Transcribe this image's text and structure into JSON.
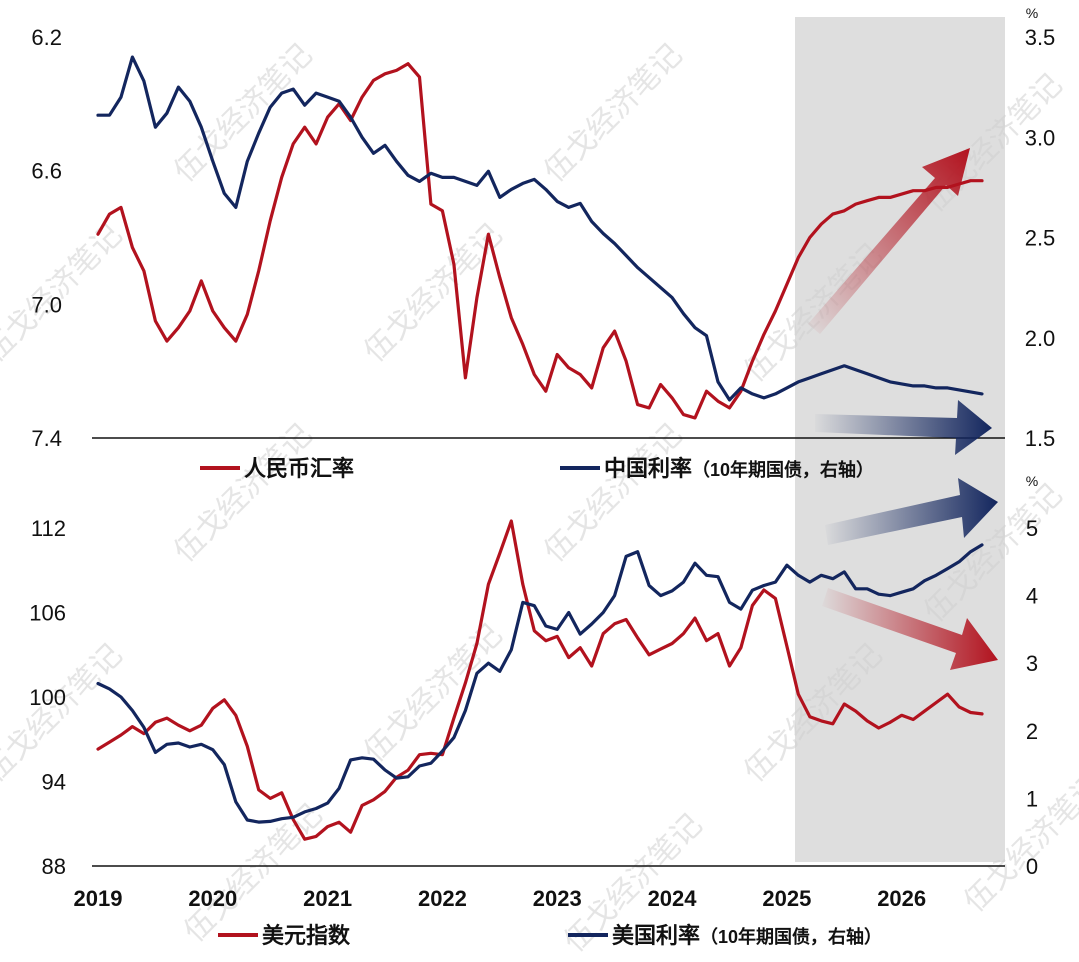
{
  "chart_data": [
    {
      "type": "line",
      "panel": "top",
      "y_left_ticks": [
        "6.2",
        "6.6",
        "7.0",
        "7.4"
      ],
      "y_left_range": [
        6.2,
        7.4
      ],
      "y_left_inverted": true,
      "y_right_ticks": [
        "3.5",
        "3.0",
        "2.5",
        "2.0",
        "1.5"
      ],
      "y_right_range": [
        1.5,
        3.5
      ],
      "y_right_unit": "%",
      "series": [
        {
          "name": "人民币汇率",
          "axis": "left",
          "color": "#b2121e",
          "x": [
            2019.0,
            2019.1,
            2019.2,
            2019.3,
            2019.4,
            2019.5,
            2019.6,
            2019.7,
            2019.8,
            2019.9,
            2020.0,
            2020.1,
            2020.2,
            2020.3,
            2020.4,
            2020.5,
            2020.6,
            2020.7,
            2020.8,
            2020.9,
            2021.0,
            2021.1,
            2021.2,
            2021.3,
            2021.4,
            2021.5,
            2021.6,
            2021.7,
            2021.8,
            2021.9,
            2022.0,
            2022.1,
            2022.2,
            2022.3,
            2022.4,
            2022.5,
            2022.6,
            2022.7,
            2022.8,
            2022.9,
            2023.0,
            2023.1,
            2023.2,
            2023.3,
            2023.4,
            2023.5,
            2023.6,
            2023.7,
            2023.8,
            2023.9,
            2024.0,
            2024.1,
            2024.2,
            2024.3,
            2024.4,
            2024.5,
            2024.6,
            2024.7,
            2024.8,
            2024.9,
            2025.0,
            2025.1,
            2025.2,
            2025.3,
            2025.4,
            2025.5,
            2025.6,
            2025.7,
            2025.8,
            2025.9,
            2026.0,
            2026.1,
            2026.2,
            2026.3,
            2026.4,
            2026.5,
            2026.6,
            2026.7
          ],
          "values": [
            6.79,
            6.73,
            6.71,
            6.83,
            6.9,
            7.05,
            7.11,
            7.07,
            7.02,
            6.93,
            7.02,
            7.07,
            7.11,
            7.03,
            6.9,
            6.75,
            6.62,
            6.52,
            6.47,
            6.52,
            6.44,
            6.4,
            6.45,
            6.38,
            6.33,
            6.31,
            6.3,
            6.28,
            6.32,
            6.7,
            6.72,
            6.88,
            7.22,
            6.98,
            6.79,
            6.92,
            7.04,
            7.12,
            7.21,
            7.26,
            7.15,
            7.19,
            7.21,
            7.25,
            7.13,
            7.08,
            7.17,
            7.3,
            7.31,
            7.24,
            7.28,
            7.33,
            7.34,
            7.26,
            7.29,
            7.31,
            7.26,
            7.17,
            7.09,
            7.02,
            6.94,
            6.86,
            6.8,
            6.76,
            6.73,
            6.72,
            6.7,
            6.69,
            6.68,
            6.68,
            6.67,
            6.66,
            6.66,
            6.65,
            6.65,
            6.64,
            6.63,
            6.63
          ]
        },
        {
          "name": "中国利率（10年期国债，右轴）",
          "axis": "right",
          "color": "#13265e",
          "x": [
            2019.0,
            2019.1,
            2019.2,
            2019.3,
            2019.4,
            2019.5,
            2019.6,
            2019.7,
            2019.8,
            2019.9,
            2020.0,
            2020.1,
            2020.2,
            2020.3,
            2020.4,
            2020.5,
            2020.6,
            2020.7,
            2020.8,
            2020.9,
            2021.0,
            2021.1,
            2021.2,
            2021.3,
            2021.4,
            2021.5,
            2021.6,
            2021.7,
            2021.8,
            2021.9,
            2022.0,
            2022.1,
            2022.2,
            2022.3,
            2022.4,
            2022.5,
            2022.6,
            2022.7,
            2022.8,
            2022.9,
            2023.0,
            2023.1,
            2023.2,
            2023.3,
            2023.4,
            2023.5,
            2023.6,
            2023.7,
            2023.8,
            2023.9,
            2024.0,
            2024.1,
            2024.2,
            2024.3,
            2024.4,
            2024.5,
            2024.6,
            2024.7,
            2024.8,
            2024.9,
            2025.0,
            2025.1,
            2025.2,
            2025.3,
            2025.4,
            2025.5,
            2025.6,
            2025.7,
            2025.8,
            2025.9,
            2026.0,
            2026.1,
            2026.2,
            2026.3,
            2026.4,
            2026.5,
            2026.6,
            2026.7
          ],
          "values": [
            3.11,
            3.11,
            3.2,
            3.4,
            3.28,
            3.05,
            3.12,
            3.25,
            3.18,
            3.05,
            2.88,
            2.72,
            2.65,
            2.88,
            3.02,
            3.15,
            3.22,
            3.24,
            3.16,
            3.22,
            3.2,
            3.18,
            3.1,
            3.0,
            2.92,
            2.96,
            2.88,
            2.81,
            2.78,
            2.82,
            2.8,
            2.8,
            2.78,
            2.76,
            2.83,
            2.7,
            2.74,
            2.77,
            2.79,
            2.74,
            2.68,
            2.65,
            2.67,
            2.58,
            2.52,
            2.47,
            2.41,
            2.35,
            2.3,
            2.25,
            2.2,
            2.12,
            2.05,
            2.01,
            1.78,
            1.69,
            1.75,
            1.72,
            1.7,
            1.72,
            1.75,
            1.78,
            1.8,
            1.82,
            1.84,
            1.86,
            1.84,
            1.82,
            1.8,
            1.78,
            1.77,
            1.76,
            1.76,
            1.75,
            1.75,
            1.74,
            1.73,
            1.72
          ]
        }
      ]
    },
    {
      "type": "line",
      "panel": "bottom",
      "y_left_ticks": [
        "112",
        "106",
        "100",
        "94",
        "88"
      ],
      "y_left_range": [
        88,
        112
      ],
      "y_right_ticks": [
        "5",
        "4",
        "3",
        "2",
        "1",
        "0"
      ],
      "y_right_range": [
        0,
        5
      ],
      "y_right_unit": "%",
      "x_ticks": [
        "2019",
        "2020",
        "2021",
        "2022",
        "2023",
        "2024",
        "2025",
        "2026"
      ],
      "x_range": [
        2019.0,
        2026.9
      ],
      "shaded_region": [
        2025.0,
        2026.9
      ],
      "series": [
        {
          "name": "美元指数",
          "axis": "left",
          "color": "#b2121e",
          "x": [
            2019.0,
            2019.1,
            2019.2,
            2019.3,
            2019.4,
            2019.5,
            2019.6,
            2019.7,
            2019.8,
            2019.9,
            2020.0,
            2020.1,
            2020.2,
            2020.3,
            2020.4,
            2020.5,
            2020.6,
            2020.7,
            2020.8,
            2020.9,
            2021.0,
            2021.1,
            2021.2,
            2021.3,
            2021.4,
            2021.5,
            2021.6,
            2021.7,
            2021.8,
            2021.9,
            2022.0,
            2022.1,
            2022.2,
            2022.3,
            2022.4,
            2022.5,
            2022.6,
            2022.7,
            2022.8,
            2022.9,
            2023.0,
            2023.1,
            2023.2,
            2023.3,
            2023.4,
            2023.5,
            2023.6,
            2023.7,
            2023.8,
            2023.9,
            2024.0,
            2024.1,
            2024.2,
            2024.3,
            2024.4,
            2024.5,
            2024.6,
            2024.7,
            2024.8,
            2024.9,
            2025.0,
            2025.1,
            2025.2,
            2025.3,
            2025.4,
            2025.5,
            2025.6,
            2025.7,
            2025.8,
            2025.9,
            2026.0,
            2026.1,
            2026.2,
            2026.3,
            2026.4,
            2026.5,
            2026.6,
            2026.7
          ],
          "values": [
            96.3,
            96.8,
            97.3,
            97.9,
            97.4,
            98.2,
            98.5,
            98.0,
            97.6,
            98.0,
            99.2,
            99.8,
            98.7,
            96.5,
            93.4,
            92.8,
            93.2,
            91.3,
            89.9,
            90.1,
            90.8,
            91.1,
            90.4,
            92.3,
            92.7,
            93.3,
            94.3,
            94.8,
            95.9,
            96.0,
            95.9,
            98.5,
            101.0,
            103.8,
            108.0,
            110.2,
            112.5,
            108.0,
            104.7,
            104.0,
            104.3,
            102.8,
            103.5,
            102.2,
            104.5,
            105.2,
            105.5,
            104.2,
            103.0,
            103.4,
            103.8,
            104.5,
            105.6,
            104.0,
            104.5,
            102.2,
            103.5,
            106.5,
            107.6,
            107.0,
            103.6,
            100.2,
            98.6,
            98.3,
            98.1,
            99.5,
            99.0,
            98.3,
            97.8,
            98.2,
            98.7,
            98.4,
            99.0,
            99.6,
            100.2,
            99.3,
            98.9,
            98.8
          ]
        },
        {
          "name": "美国利率（10年期国债，右轴）",
          "axis": "right",
          "color": "#13265e",
          "x": [
            2019.0,
            2019.1,
            2019.2,
            2019.3,
            2019.4,
            2019.5,
            2019.6,
            2019.7,
            2019.8,
            2019.9,
            2020.0,
            2020.1,
            2020.2,
            2020.3,
            2020.4,
            2020.5,
            2020.6,
            2020.7,
            2020.8,
            2020.9,
            2021.0,
            2021.1,
            2021.2,
            2021.3,
            2021.4,
            2021.5,
            2021.6,
            2021.7,
            2021.8,
            2021.9,
            2022.0,
            2022.1,
            2022.2,
            2022.3,
            2022.4,
            2022.5,
            2022.6,
            2022.7,
            2022.8,
            2022.9,
            2023.0,
            2023.1,
            2023.2,
            2023.3,
            2023.4,
            2023.5,
            2023.6,
            2023.7,
            2023.8,
            2023.9,
            2024.0,
            2024.1,
            2024.2,
            2024.3,
            2024.4,
            2024.5,
            2024.6,
            2024.7,
            2024.8,
            2024.9,
            2025.0,
            2025.1,
            2025.2,
            2025.3,
            2025.4,
            2025.5,
            2025.6,
            2025.7,
            2025.8,
            2025.9,
            2026.0,
            2026.1,
            2026.2,
            2026.3,
            2026.4,
            2026.5,
            2026.6,
            2026.7
          ],
          "values": [
            2.7,
            2.62,
            2.5,
            2.3,
            2.05,
            1.68,
            1.8,
            1.82,
            1.76,
            1.8,
            1.72,
            1.5,
            0.95,
            0.68,
            0.65,
            0.66,
            0.7,
            0.72,
            0.8,
            0.85,
            0.93,
            1.15,
            1.57,
            1.6,
            1.58,
            1.42,
            1.3,
            1.32,
            1.48,
            1.52,
            1.7,
            1.9,
            2.3,
            2.85,
            3.0,
            2.88,
            3.2,
            3.9,
            3.85,
            3.55,
            3.5,
            3.75,
            3.43,
            3.58,
            3.75,
            4.0,
            4.58,
            4.65,
            4.15,
            4.0,
            4.07,
            4.2,
            4.48,
            4.3,
            4.28,
            3.9,
            3.8,
            4.08,
            4.15,
            4.2,
            4.45,
            4.3,
            4.2,
            4.3,
            4.25,
            4.35,
            4.1,
            4.1,
            4.02,
            4.0,
            4.05,
            4.1,
            4.22,
            4.3,
            4.4,
            4.5,
            4.65,
            4.75
          ]
        }
      ]
    }
  ],
  "legend_top": {
    "rmb_label": "人民币汇率",
    "china_rate_label": "中国利率",
    "china_rate_note": "（10年期国债，右轴）"
  },
  "legend_bottom": {
    "dxy_label": "美元指数",
    "us_rate_label": "美国利率",
    "us_rate_note": "（10年期国债，右轴）"
  },
  "watermark": "伍戈经济笔记",
  "colors": {
    "red": "#b2121e",
    "navy": "#13265e",
    "shade": "#dedede",
    "axis": "#111111"
  }
}
